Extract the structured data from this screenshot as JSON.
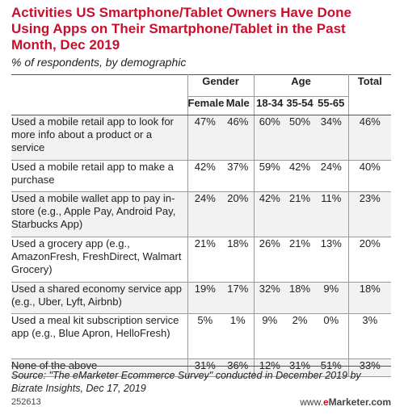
{
  "header": {
    "title": "Activities US Smartphone/Tablet Owners Have Done Using Apps on Their Smartphone/Tablet in the Past Month, Dec 2019",
    "subtitle": "% of respondents, by demographic"
  },
  "chart_data": {
    "type": "table",
    "title": "Activities US Smartphone/Tablet Owners Have Done Using Apps on Their Smartphone/Tablet in the Past Month, Dec 2019",
    "subtitle": "% of respondents, by demographic",
    "column_groups": [
      {
        "label": "Gender",
        "columns": [
          "Female",
          "Male"
        ]
      },
      {
        "label": "Age",
        "columns": [
          "18-34",
          "35-54",
          "55-65"
        ]
      },
      {
        "label": "Total",
        "columns": [
          ""
        ]
      }
    ],
    "columns": [
      "Female",
      "Male",
      "18-34",
      "35-54",
      "55-65",
      "Total"
    ],
    "rows": [
      {
        "label": "Used a mobile retail app to look for more info about a product or a service",
        "values": [
          "47%",
          "46%",
          "60%",
          "50%",
          "34%",
          "46%"
        ]
      },
      {
        "label": "Used a mobile retail app to make a purchase",
        "values": [
          "42%",
          "37%",
          "59%",
          "42%",
          "24%",
          "40%"
        ]
      },
      {
        "label": "Used a mobile wallet app to pay in-store (e.g., Apple Pay, Android Pay, Starbucks App)",
        "values": [
          "24%",
          "20%",
          "42%",
          "21%",
          "11%",
          "23%"
        ]
      },
      {
        "label": "Used a grocery app (e.g., AmazonFresh, FreshDirect, Walmart Grocery)",
        "values": [
          "21%",
          "18%",
          "26%",
          "21%",
          "13%",
          "20%"
        ]
      },
      {
        "label": "Used a shared economy service app (e.g., Uber, Lyft, Airbnb)",
        "values": [
          "19%",
          "17%",
          "32%",
          "18%",
          "9%",
          "18%"
        ]
      },
      {
        "label": "Used a meal kit subscription service app (e.g., Blue Apron, HelloFresh)",
        "values": [
          "5%",
          "1%",
          "9%",
          "2%",
          "0%",
          "3%"
        ]
      },
      {
        "label": "None of the above",
        "values": [
          "31%",
          "36%",
          "12%",
          "31%",
          "51%",
          "33%"
        ]
      }
    ]
  },
  "footer": {
    "source": "Source: \"The eMarketer Ecommerce Survey\" conducted in December 2019 by Bizrate Insights, Dec 17, 2019",
    "chart_id": "252613",
    "brand_www": "www.",
    "brand_e": "e",
    "brand_rest": "Marketer.com"
  }
}
